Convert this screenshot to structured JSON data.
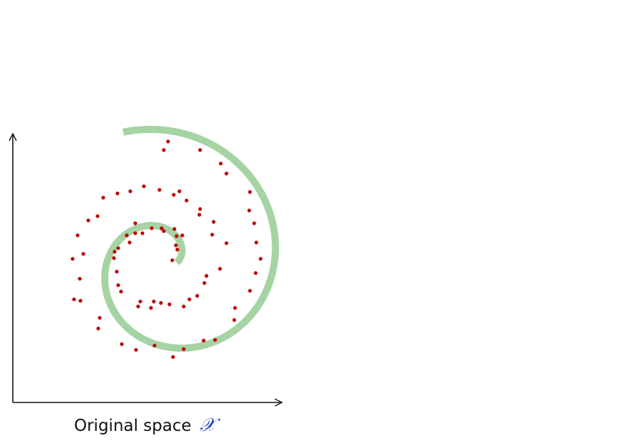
{
  "caption": {
    "label": "Original space",
    "symbol": "𝒳"
  },
  "colors": {
    "axis": "#111111",
    "manifold": "#a6d3a3",
    "points": "#c00000",
    "symbol": "#1f3fbf"
  },
  "chart_data": {
    "type": "scatter",
    "title": "",
    "xlabel": "",
    "ylabel": "",
    "grid": false,
    "legend": "none",
    "curve": "spiral",
    "series": [
      {
        "x": [
          230,
          236,
          281,
          310,
          318,
          351,
          350,
          357,
          360,
          366,
          359,
          351,
          330,
          329,
          302,
          286,
          258,
          243,
          217,
          191,
          171,
          138,
          140,
          113,
          104,
          112,
          102,
          117,
          109,
          124,
          137,
          145,
          165,
          183,
          202,
          224,
          244,
          252,
          262,
          281,
          280,
          300,
          298,
          318,
          309,
          290,
          287,
          277,
          266,
          258,
          238,
          226,
          216,
          197,
          212,
          194,
          170,
          166,
          164,
          160,
          161,
          166,
          182,
          178,
          190,
          190,
          200,
          213,
          227,
          230,
          245,
          248,
          256,
          247,
          249,
          242
        ],
        "y": [
          211,
          199,
          211,
          230,
          244,
          270,
          296,
          314,
          341,
          364,
          384,
          409,
          433,
          450,
          478,
          479,
          491,
          502,
          486,
          492,
          484,
          462,
          447,
          423,
          421,
          392,
          364,
          357,
          331,
          310,
          304,
          278,
          272,
          269,
          262,
          267,
          274,
          269,
          282,
          294,
          302,
          312,
          330,
          342,
          378,
          388,
          398,
          416,
          421,
          431,
          428,
          426,
          424,
          424,
          433,
          431,
          410,
          401,
          382,
          363,
          354,
          349,
          341,
          331,
          314,
          328,
          328,
          321,
          321,
          325,
          322,
          332,
          331,
          345,
          351,
          366
        ]
      }
    ]
  }
}
